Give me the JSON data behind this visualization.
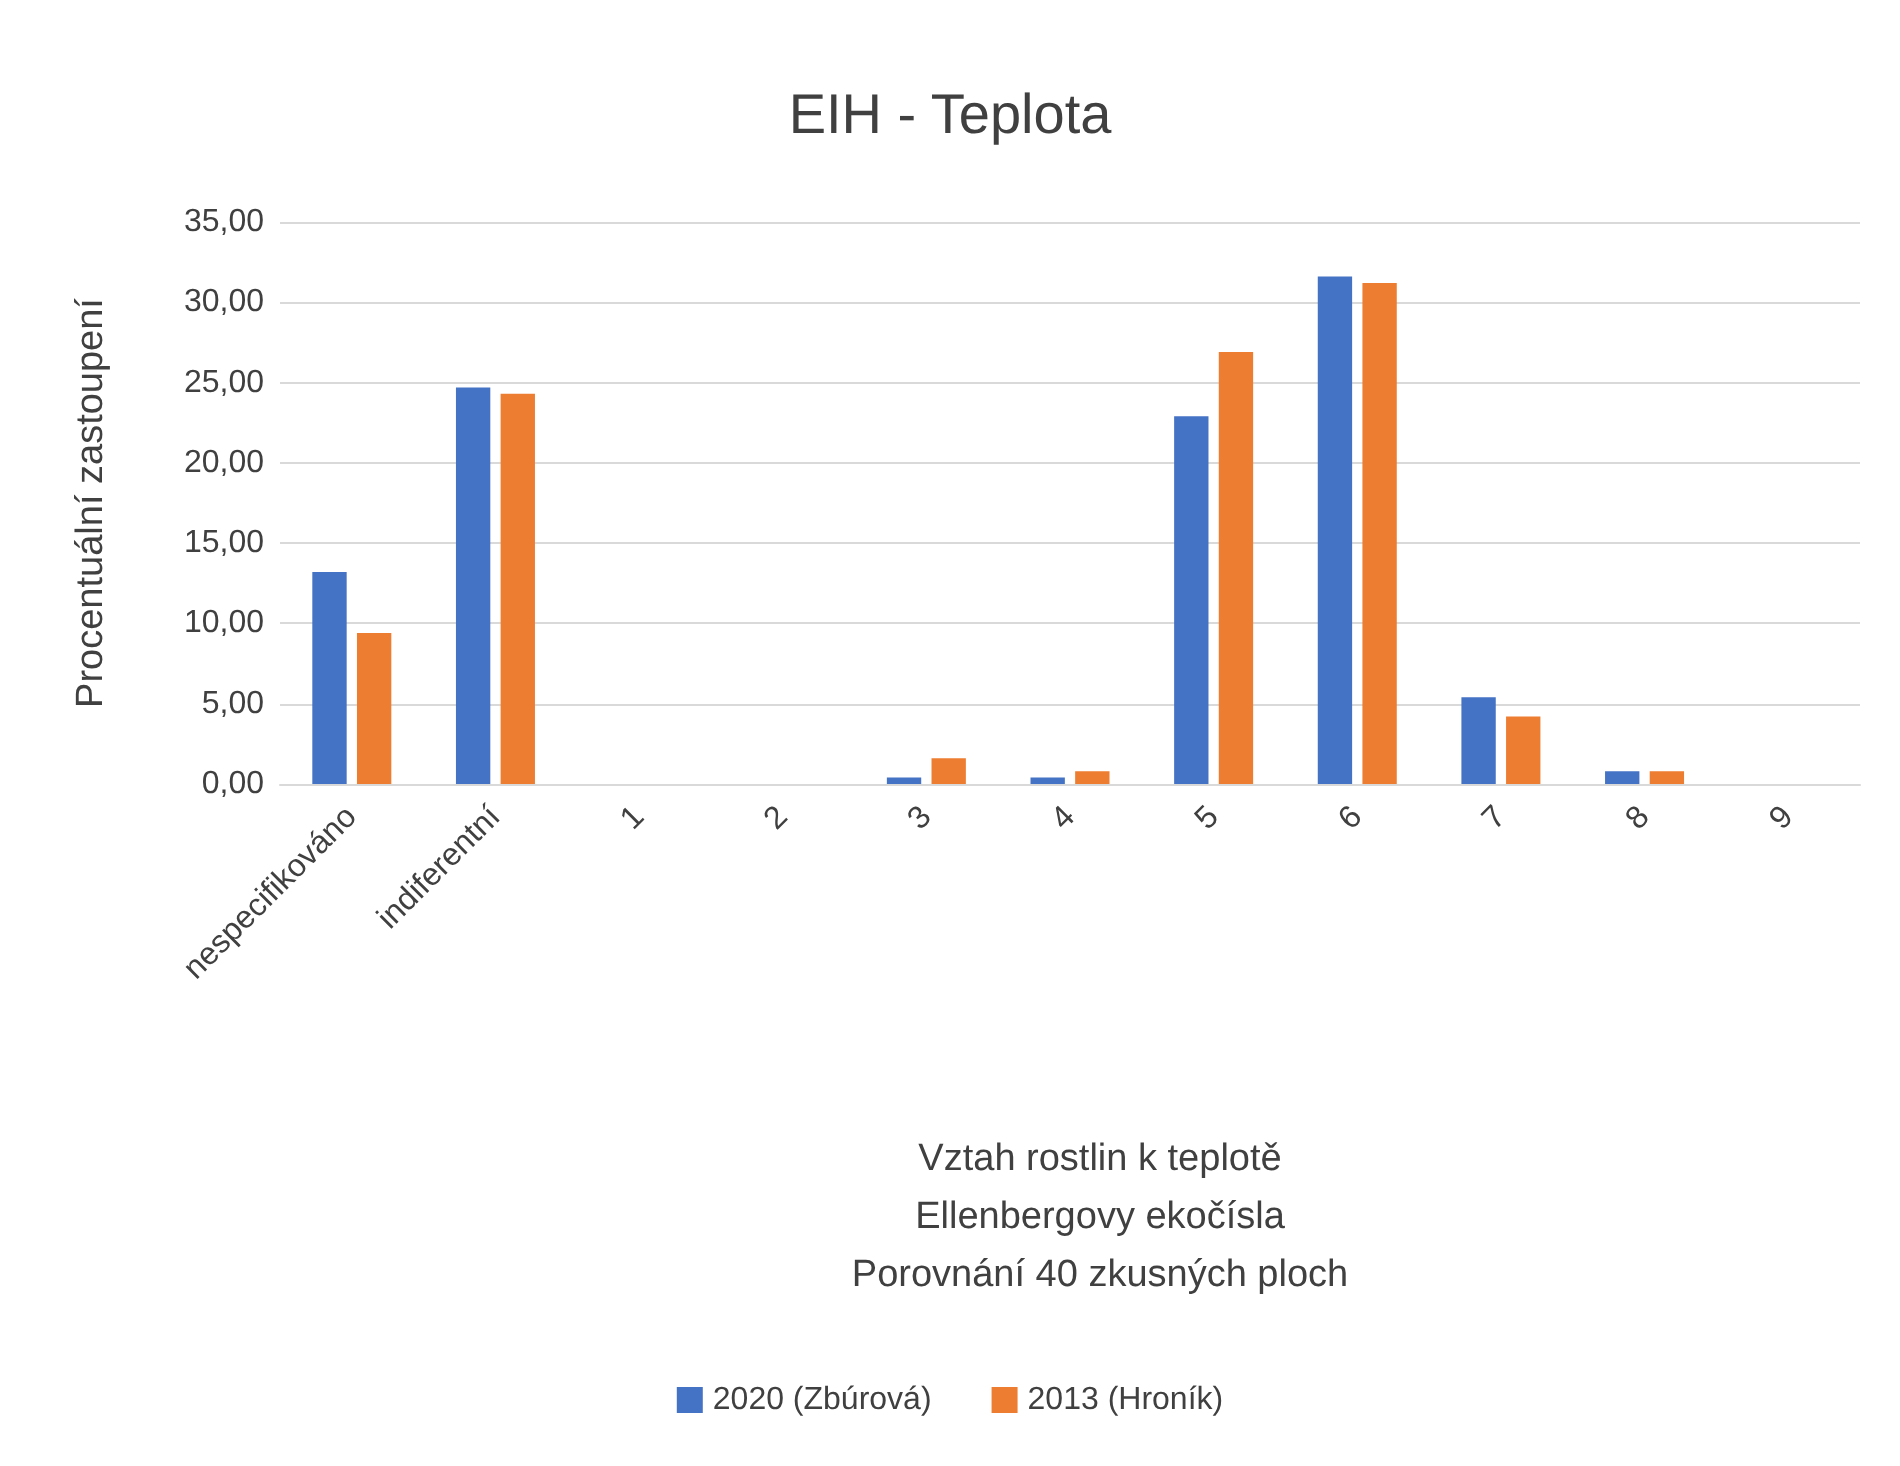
{
  "chart_data": {
    "type": "bar",
    "title": "EIH - Teplota",
    "xlabel": "Vztah rostlin k teplotě\nEllenbergovy ekočísla\nPorovnání 40 zkusných ploch",
    "ylabel": "Procentuální zastoupení",
    "categories": [
      "nespecifikováno",
      "indiferentní",
      "1",
      "2",
      "3",
      "4",
      "5",
      "6",
      "7",
      "8",
      "9"
    ],
    "series": [
      {
        "name": "2020 (Zbúrová)",
        "color": "#4472c4",
        "values": [
          13.2,
          24.7,
          0,
          0,
          0.4,
          0.4,
          22.9,
          31.6,
          5.4,
          0.8,
          0
        ]
      },
      {
        "name": "2013 (Hroník)",
        "color": "#ed7d31",
        "values": [
          9.4,
          24.3,
          0,
          0,
          1.6,
          0.8,
          26.9,
          31.2,
          4.2,
          0.8,
          0
        ]
      }
    ],
    "ylim": [
      0,
      35
    ],
    "yticks": [
      {
        "value": 0,
        "label": "0,00"
      },
      {
        "value": 5,
        "label": "5,00"
      },
      {
        "value": 10,
        "label": "10,00"
      },
      {
        "value": 15,
        "label": "15,00"
      },
      {
        "value": 20,
        "label": "20,00"
      },
      {
        "value": 25,
        "label": "25,00"
      },
      {
        "value": 30,
        "label": "30,00"
      },
      {
        "value": 35,
        "label": "35,00"
      }
    ],
    "grid": "y",
    "legend": "bottom"
  }
}
